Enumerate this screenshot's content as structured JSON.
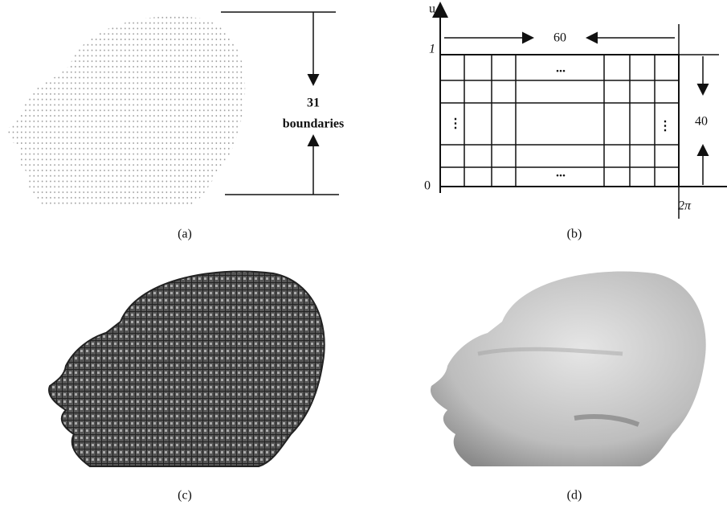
{
  "panel_a": {
    "count": "31",
    "label": "boundaries",
    "caption": "(a)"
  },
  "panel_b": {
    "u_axis": "u",
    "top_value": "1",
    "origin": "0",
    "right_value": "2π",
    "columns": "60",
    "rows": "40",
    "ellipsis_top": "...",
    "ellipsis_bottom": "...",
    "ellipsis_left": "⋮",
    "ellipsis_right": "⋮",
    "caption": "(b)"
  },
  "panel_c": {
    "caption": "(c)"
  },
  "panel_d": {
    "caption": "(d)"
  }
}
